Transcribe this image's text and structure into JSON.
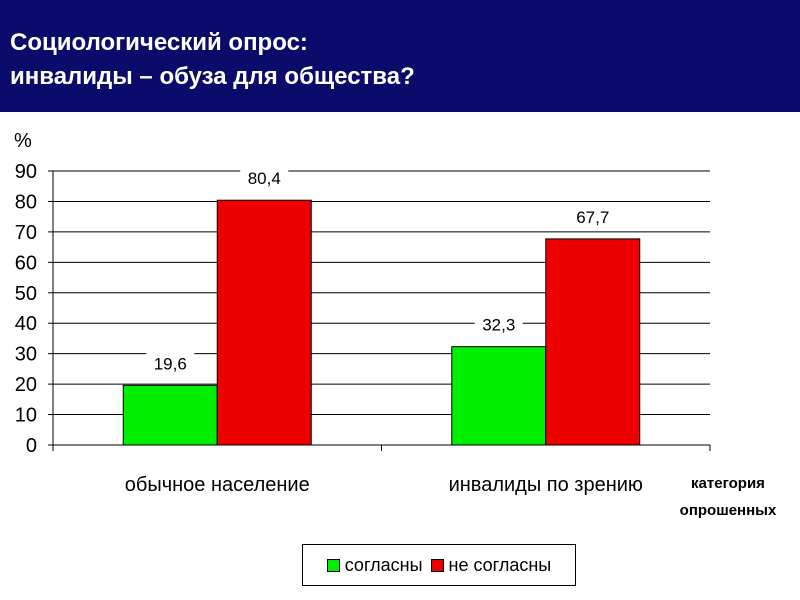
{
  "header": {
    "title_line1": "Социологический опрос:",
    "title_line2": "инвалиды – обуза для общества?",
    "background": "#0b0b6b"
  },
  "chart_data": {
    "type": "bar",
    "ylabel": "%",
    "xlabel_line1": "категория",
    "xlabel_line2": "опрошенных",
    "categories": [
      "обычное население",
      "инвалиды по зрению"
    ],
    "series": [
      {
        "name": "согласны",
        "values": [
          19.6,
          32.3
        ],
        "labels": [
          "19,6",
          "32,3"
        ],
        "color": "#00ee00"
      },
      {
        "name": "не согласны",
        "values": [
          80.4,
          67.7
        ],
        "labels": [
          "80,4",
          "67,7"
        ],
        "color": "#ee0000"
      }
    ],
    "ylim": [
      0,
      90
    ],
    "yticks": [
      0,
      10,
      20,
      30,
      40,
      50,
      60,
      70,
      80,
      90
    ],
    "grid": true,
    "legend_position": "bottom"
  }
}
